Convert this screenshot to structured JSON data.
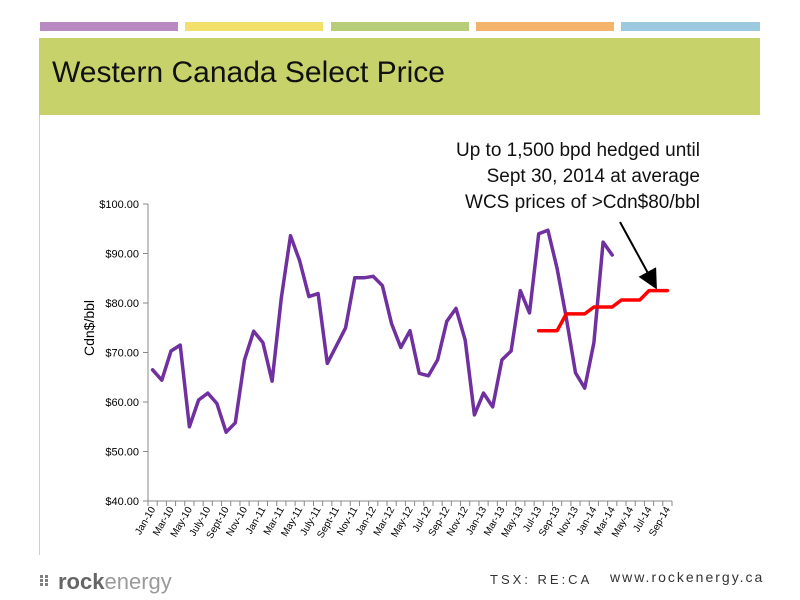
{
  "slide": {
    "title": "Western Canada Select Price",
    "top_bar_colors": [
      "#b98ac2",
      "#f1e06a",
      "#b8cd79",
      "#f3b36a",
      "#9dc9e0"
    ],
    "header_color": "#c7d36a",
    "annotation_lines": [
      "Up to 1,500 bpd hedged until",
      "Sept 30, 2014 at average",
      "WCS prices of >Cdn$80/bbl"
    ]
  },
  "footer": {
    "logo_bold": "rock",
    "logo_light": "energy",
    "ticker": "TSX: RE:CA",
    "website": "www.rockenergy.ca"
  },
  "chart_data": {
    "type": "line",
    "ylabel": "Cdn$/bbl",
    "ylim": [
      40,
      100
    ],
    "y_ticks": [
      40,
      50,
      60,
      70,
      80,
      90,
      100
    ],
    "y_tick_labels": [
      "$40.00",
      "$50.00",
      "$60.00",
      "$70.00",
      "$80.00",
      "$90.00",
      "$100.00"
    ],
    "x_tick_labels": [
      "Jan-10",
      "Mar-10",
      "May-10",
      "July-10",
      "Sept-10",
      "Nov-10",
      "Jan-11",
      "Mar-11",
      "May-11",
      "July-11",
      "Sept-11",
      "Nov-11",
      "Jan-12",
      "Mar-12",
      "May-12",
      "Jul-12",
      "Sep-12",
      "Nov-12",
      "Jan-13",
      "Mar-13",
      "May-13",
      "Jul-13",
      "Sep-13",
      "Nov-13",
      "Jan-14",
      "Mar-14",
      "May-14",
      "Jul-14",
      "Sep-14"
    ],
    "series": [
      {
        "color": "#7030a0",
        "start_index": 0,
        "values": [
          66.5,
          64.4,
          70.3,
          71.5,
          55.0,
          60.4,
          61.8,
          59.7,
          53.9,
          55.8,
          68.5,
          74.3,
          72.0,
          64.2,
          81.0,
          93.6,
          88.5,
          81.3,
          81.9,
          67.8,
          71.4,
          75.0,
          85.1,
          85.1,
          85.4,
          83.5,
          75.8,
          71.0,
          74.4,
          65.8,
          65.3,
          68.5,
          76.3,
          78.9,
          72.5,
          57.4,
          61.8,
          59.0,
          68.5,
          70.3,
          82.5,
          78.0,
          94.0,
          94.7,
          87.0,
          77.0,
          65.9,
          62.8,
          72.0,
          92.3,
          89.7
        ]
      },
      {
        "color": "#ff0000",
        "start_index": 42,
        "values": [
          74.4,
          74.4,
          74.4,
          77.8,
          77.8,
          77.8,
          79.2,
          79.2,
          79.2,
          80.6,
          80.6,
          80.6,
          82.5,
          82.5,
          82.5
        ]
      }
    ],
    "grid": false
  }
}
